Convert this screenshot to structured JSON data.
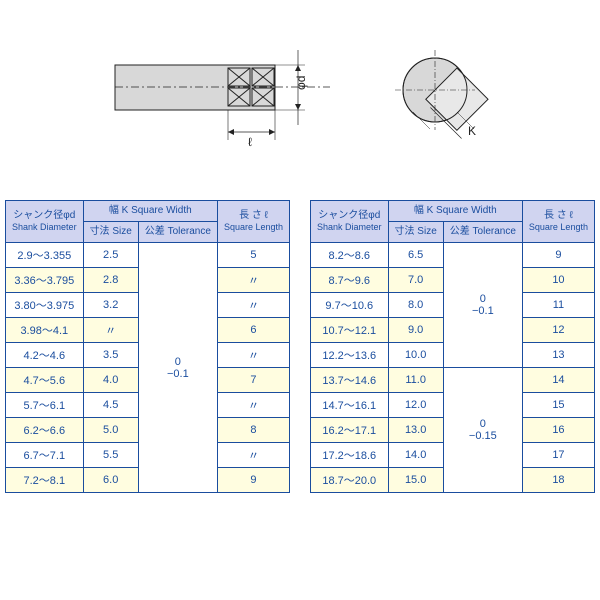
{
  "header_col1_jp": "シャンク径φd",
  "header_col1_en": "Shank Diameter",
  "header_col2_main": "幅 K  Square Width",
  "header_col2a": "寸法 Size",
  "header_col2b": "公差 Tolerance",
  "header_col3_jp": "長 さ  ℓ",
  "header_col3_en": "Square Length",
  "tol_a": "0\n−0.1",
  "tol_b": "0\n−0.15",
  "ditto": "〃",
  "table_left": {
    "rows": [
      {
        "d": "2.9～3.355",
        "size": "2.5",
        "len": "5",
        "a": false
      },
      {
        "d": "3.36～3.795",
        "size": "2.8",
        "len": "〃",
        "a": true
      },
      {
        "d": "3.80～3.975",
        "size": "3.2",
        "len": "〃",
        "a": false
      },
      {
        "d": "3.98～4.1",
        "size": "〃",
        "len": "6",
        "a": true
      },
      {
        "d": "4.2～4.6",
        "size": "3.5",
        "len": "〃",
        "a": false
      },
      {
        "d": "4.7～5.6",
        "size": "4.0",
        "len": "7",
        "a": true
      },
      {
        "d": "5.7～6.1",
        "size": "4.5",
        "len": "〃",
        "a": false
      },
      {
        "d": "6.2～6.6",
        "size": "5.0",
        "len": "8",
        "a": true
      },
      {
        "d": "6.7～7.1",
        "size": "5.5",
        "len": "〃",
        "a": false
      },
      {
        "d": "7.2～8.1",
        "size": "6.0",
        "len": "9",
        "a": true
      }
    ]
  },
  "table_right": {
    "rows": [
      {
        "d": "8.2～8.6",
        "size": "6.5",
        "len": "9",
        "a": false
      },
      {
        "d": "8.7～9.6",
        "size": "7.0",
        "len": "10",
        "a": true
      },
      {
        "d": "9.7～10.6",
        "size": "8.0",
        "len": "11",
        "a": false
      },
      {
        "d": "10.7～12.1",
        "size": "9.0",
        "len": "12",
        "a": true
      },
      {
        "d": "12.2～13.6",
        "size": "10.0",
        "len": "13",
        "a": false
      },
      {
        "d": "13.7～14.6",
        "size": "11.0",
        "len": "14",
        "a": true
      },
      {
        "d": "14.7～16.1",
        "size": "12.0",
        "len": "15",
        "a": false
      },
      {
        "d": "16.2～17.1",
        "size": "13.0",
        "len": "16",
        "a": true
      },
      {
        "d": "17.2～18.6",
        "size": "14.0",
        "len": "17",
        "a": false
      },
      {
        "d": "18.7～20.0",
        "size": "15.0",
        "len": "18",
        "a": true
      }
    ]
  },
  "diagram": {
    "label_phi_d": "φd",
    "label_ell": "ℓ",
    "label_k": "K"
  }
}
